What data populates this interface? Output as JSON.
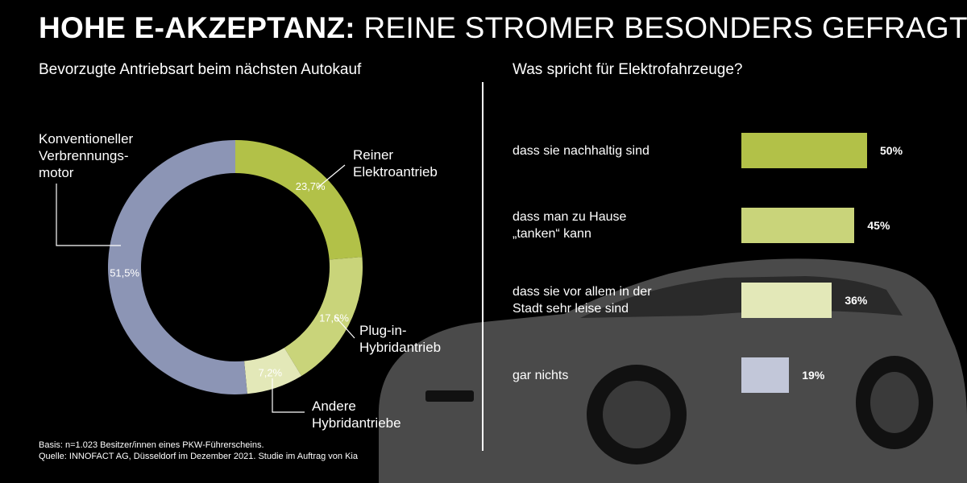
{
  "title": {
    "bold": "HOHE E-AKZEPTANZ:",
    "rest": "REINE STROMER BESONDERS GEFRAGT"
  },
  "left_subtitle": "Bevorzugte Antriebsart beim nächsten Autokauf",
  "right_subtitle": "Was spricht für Elektrofahrzeuge?",
  "footnote": {
    "line1": "Basis: n=1.023 Besitzer/innen eines PKW-Führerscheins.",
    "line2": "Quelle: INNOFACT AG, Düsseldorf im Dezember 2021. Studie im Auftrag von Kia"
  },
  "colors": {
    "bg": "#000000",
    "bev": "#b2c148",
    "phev": "#c9d47a",
    "hybrid": "#e3e8b8",
    "ice": "#8c95b5",
    "none": "#c2c7d9",
    "car": "#4a4a4a"
  },
  "chart_data": [
    {
      "type": "pie",
      "donut": true,
      "title": "Bevorzugte Antriebsart beim nächsten Autokauf",
      "slices": [
        {
          "label": "Reiner\nElektroantrieb",
          "value": 23.7,
          "value_label": "23,7%",
          "color": "#b2c148"
        },
        {
          "label": "Plug-in-\nHybridantrieb",
          "value": 17.6,
          "value_label": "17,6%",
          "color": "#c9d47a"
        },
        {
          "label": "Andere\nHybridantriebe",
          "value": 7.2,
          "value_label": "7,2%",
          "color": "#e3e8b8"
        },
        {
          "label": "Konventioneller\nVerbrennungs-\nmotor",
          "value": 51.5,
          "value_label": "51,5%",
          "color": "#8c95b5"
        }
      ]
    },
    {
      "type": "bar",
      "orientation": "horizontal",
      "title": "Was spricht für Elektrofahrzeuge?",
      "categories": [
        "dass sie nachhaltig sind",
        "dass man zu Hause\n„tanken“ kann",
        "dass sie vor allem in der\nStadt sehr leise sind",
        "gar nichts"
      ],
      "values": [
        50,
        45,
        36,
        19
      ],
      "value_labels": [
        "50%",
        "45%",
        "36%",
        "19%"
      ],
      "colors": [
        "#b2c148",
        "#c9d47a",
        "#e3e8b8",
        "#c2c7d9"
      ],
      "xlim": [
        0,
        50
      ]
    }
  ]
}
